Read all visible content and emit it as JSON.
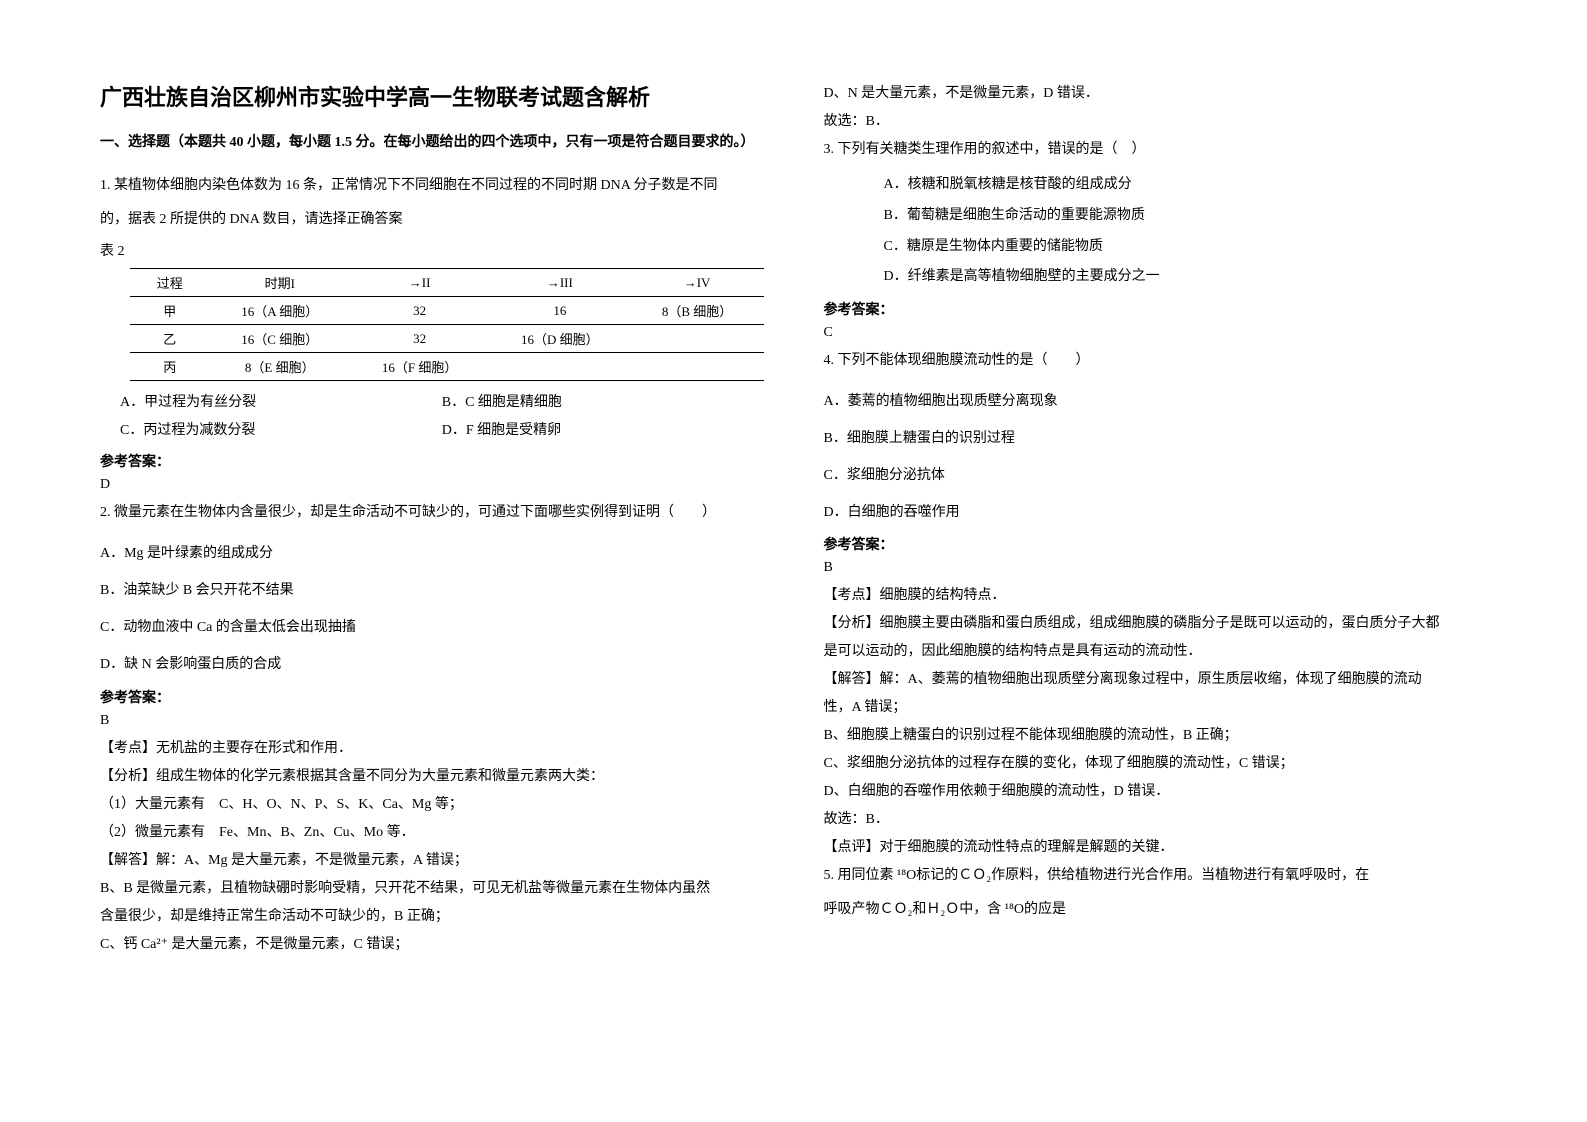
{
  "title": "广西壮族自治区柳州市实验中学高一生物联考试题含解析",
  "section1_header": "一、选择题（本题共 40 小题，每小题 1.5 分。在每小题给出的四个选项中，只有一项是符合题目要求的。）",
  "q1": {
    "stem_l1": "1. 某植物体细胞内染色体数为 16 条，正常情况下不同细胞在不同过程的不同时期 DNA 分子数是不同",
    "stem_l2": "的，据表 2 所提供的 DNA 数目，请选择正确答案",
    "table_label": "表 2",
    "headers": [
      "过程",
      "时期I",
      "→II",
      "→III",
      "→IV"
    ],
    "rows": [
      [
        "甲",
        "16（A 细胞）",
        "32",
        "16",
        "8（B 细胞）"
      ],
      [
        "乙",
        "16（C 细胞）",
        "32",
        "16（D 细胞）",
        ""
      ],
      [
        "丙",
        "8（E 细胞）",
        "16（F 细胞）",
        "",
        ""
      ]
    ],
    "optA": "A．甲过程为有丝分裂",
    "optB": "B．C 细胞是精细胞",
    "optC": "C．丙过程为减数分裂",
    "optD": "D．F 细胞是受精卵",
    "answer_header": "参考答案：",
    "answer": "D"
  },
  "q2": {
    "stem": "2. 微量元素在生物体内含量很少，却是生命活动不可缺少的，可通过下面哪些实例得到证明（　　）",
    "optA": "A．Mg 是叶绿素的组成成分",
    "optB": "B．油菜缺少 B 会只开花不结果",
    "optC": "C．动物血液中 Ca 的含量太低会出现抽搐",
    "optD": "D．缺 N 会影响蛋白质的合成",
    "answer_header": "参考答案：",
    "answer": "B",
    "exp1": "【考点】无机盐的主要存在形式和作用．",
    "exp2": "【分析】组成生物体的化学元素根据其含量不同分为大量元素和微量元素两大类：",
    "exp3": "（1）大量元素有　C、H、O、N、P、S、K、Ca、Mg 等；",
    "exp4": "（2）微量元素有　Fe、Mn、B、Zn、Cu、Mo 等．",
    "exp5": "【解答】解：A、Mg 是大量元素，不是微量元素，A 错误；",
    "exp6": "B、B 是微量元素，且植物缺硼时影响受精，只开花不结果，可见无机盐等微量元素在生物体内虽然",
    "exp7": "含量很少，却是维持正常生命活动不可缺少的，B 正确；",
    "exp8": "C、钙 Ca²⁺ 是大量元素，不是微量元素，C 错误；"
  },
  "col2": {
    "q2_cont1": "D、N 是大量元素，不是微量元素，D 错误．",
    "q2_cont2": "故选：B．"
  },
  "q3": {
    "stem": "3. 下列有关糖类生理作用的叙述中，错误的是（　）",
    "optA": "A．核糖和脱氧核糖是核苷酸的组成成分",
    "optB": "B．葡萄糖是细胞生命活动的重要能源物质",
    "optC": "C．糖原是生物体内重要的储能物质",
    "optD": "D．纤维素是高等植物细胞壁的主要成分之一",
    "answer_header": "参考答案：",
    "answer": "C"
  },
  "q4": {
    "stem": "4. 下列不能体现细胞膜流动性的是（　　）",
    "optA": "A．萎蔫的植物细胞出现质壁分离现象",
    "optB": "B．细胞膜上糖蛋白的识别过程",
    "optC": "C．浆细胞分泌抗体",
    "optD": "D．白细胞的吞噬作用",
    "answer_header": "参考答案：",
    "answer": "B",
    "exp1": "【考点】细胞膜的结构特点．",
    "exp2": "【分析】细胞膜主要由磷脂和蛋白质组成，组成细胞膜的磷脂分子是既可以运动的，蛋白质分子大都",
    "exp3": "是可以运动的，因此细胞膜的结构特点是具有运动的流动性．",
    "exp4": "【解答】解：A、萎蔫的植物细胞出现质壁分离现象过程中，原生质层收缩，体现了细胞膜的流动",
    "exp5": "性，A 错误；",
    "exp6": "B、细胞膜上糖蛋白的识别过程不能体现细胞膜的流动性，B 正确；",
    "exp7": "C、浆细胞分泌抗体的过程存在膜的变化，体现了细胞膜的流动性，C 错误；",
    "exp8": "D、白细胞的吞噬作用依赖于细胞膜的流动性，D 错误．",
    "exp9": "故选：B．",
    "exp10": "【点评】对于细胞膜的流动性特点的理解是解题的关键．"
  },
  "q5": {
    "stem_l1": "5. 用同位素 ¹⁸O标记的ＣＯ₂作原料，供给植物进行光合作用。当植物进行有氧呼吸时，在",
    "stem_l2": "呼吸产物ＣＯ₂和Ｈ₂Ｏ中，含 ¹⁸O的应是"
  }
}
